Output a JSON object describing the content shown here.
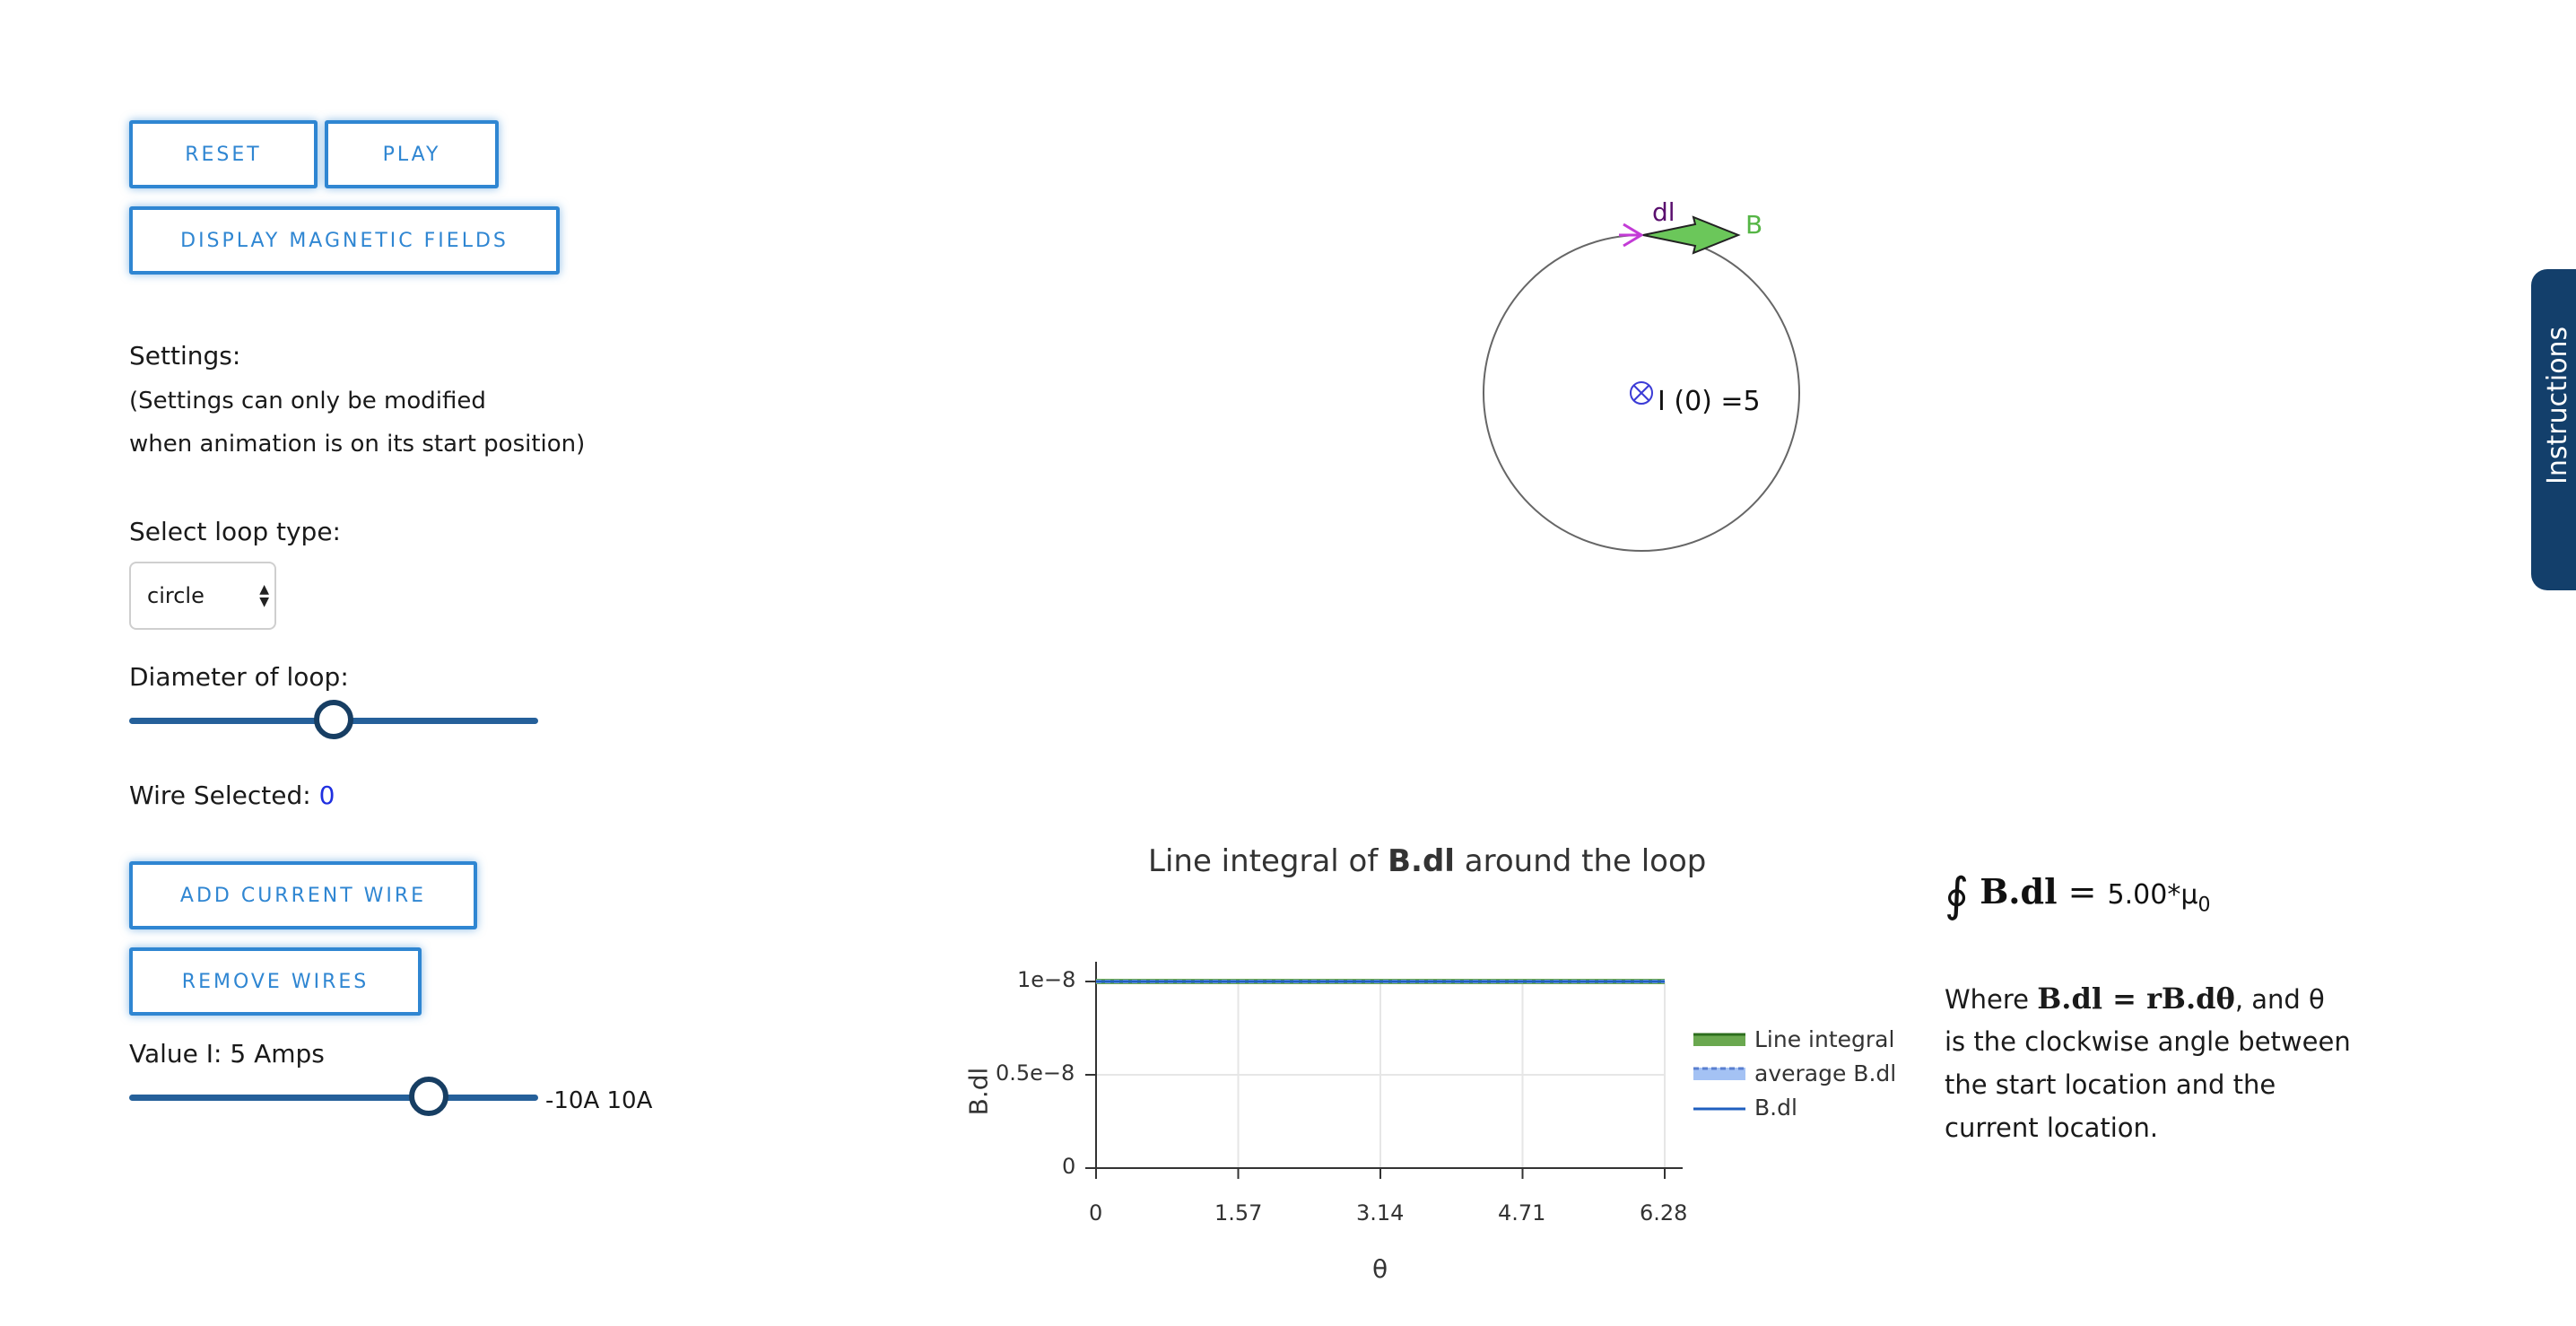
{
  "buttons": {
    "reset": "RESET",
    "play": "PLAY",
    "display_fields": "DISPLAY MAGNETIC FIELDS",
    "add_wire": "ADD CURRENT WIRE",
    "remove_wires": "REMOVE WIRES"
  },
  "settings": {
    "title": "Settings:",
    "note_line1": "(Settings can only be modified",
    "note_line2": "when animation is on its start position)"
  },
  "loop_type": {
    "label": "Select loop type:",
    "selected": "circle"
  },
  "diameter": {
    "label": "Diameter of loop:",
    "level": 0.5
  },
  "wire": {
    "label": "Wire Selected:",
    "value": "0"
  },
  "current": {
    "label": "Value I: 5 Amps",
    "range_text": "-10A 10A",
    "level": 0.725
  },
  "instructions_tab": "Instructions",
  "diagram": {
    "dl_label": "dl",
    "b_label": "B",
    "wire_label": "I (0) =5",
    "colors": {
      "dl": "#c33bd6",
      "b": "#6bc75a",
      "wire": "#3b3bd6"
    }
  },
  "chart_data": {
    "type": "line",
    "title_prefix": "Line integral of ",
    "title_bold": "B.dl",
    "title_suffix": " around the loop",
    "xlabel": "θ",
    "ylabel": "B.dl",
    "x_ticks": [
      "0",
      "1.57",
      "3.14",
      "4.71",
      "6.28"
    ],
    "y_ticks": [
      "0",
      "0.5e−8",
      "1e−8"
    ],
    "xlim": [
      0,
      6.28
    ],
    "ylim": [
      0,
      1e-08
    ],
    "grid": true,
    "legend_position": "right",
    "series": [
      {
        "name": "Line integral",
        "color": "#6aa84f",
        "x": [
          0,
          6.28
        ],
        "y": [
          1e-08,
          1e-08
        ]
      },
      {
        "name": "average B.dl",
        "color": "#a4c2f4",
        "x": [
          0,
          6.28
        ],
        "y": [
          1e-08,
          1e-08
        ]
      },
      {
        "name": "B.dl",
        "color": "#1f5fbf",
        "x": [
          0,
          6.28
        ],
        "y": [
          1e-08,
          1e-08
        ]
      }
    ]
  },
  "formula": {
    "integral_value": "5.00*μ",
    "subscript": "0",
    "where_word": "Where ",
    "where_math": "B.dl = rB.dθ",
    "where_tail": ", and θ",
    "line2": "is the clockwise angle between",
    "line3": "the start location and the",
    "line4": "current location."
  }
}
